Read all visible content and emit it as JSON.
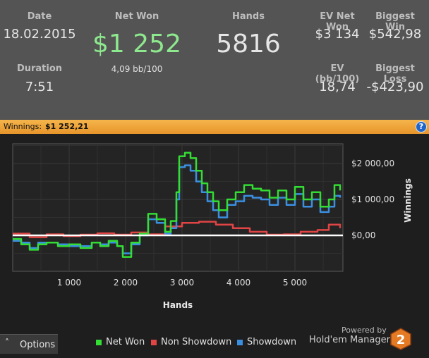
{
  "stats": {
    "date": {
      "label": "Date",
      "value": "18.02.2015"
    },
    "net_won": {
      "label": "Net Won",
      "value": "$1 252",
      "sub": "4,09 bb/100"
    },
    "hands": {
      "label": "Hands",
      "value": "5816"
    },
    "ev_net_won": {
      "label": "EV Net Won",
      "value": "$3 134"
    },
    "biggest_win": {
      "label": "Biggest Win",
      "value": "$542,98"
    },
    "duration": {
      "label": "Duration",
      "value": "7:51"
    },
    "ev_bb100": {
      "label": "EV (bb/100)",
      "value": "18,74"
    },
    "biggest_loss": {
      "label": "Biggest Loss",
      "value": "-$423,90"
    }
  },
  "banner": {
    "label": "Winnings:",
    "value": "$1 252,21",
    "help_icon": "?"
  },
  "colors": {
    "net_won": "#33dd33",
    "non_showdown": "#e04444",
    "showdown": "#3b8fe0",
    "banner": "#eea337"
  },
  "footer": {
    "options_label": "Options",
    "options_caret": "˄",
    "powered_by": "Powered by",
    "brand": "Hold'em Manager",
    "logo_text": "2"
  },
  "legend": [
    {
      "name": "Net Won",
      "color": "#33dd33"
    },
    {
      "name": "Non Showdown",
      "color": "#e04444"
    },
    {
      "name": "Showdown",
      "color": "#3b8fe0"
    }
  ],
  "chart_data": {
    "type": "line",
    "xlabel": "Hands",
    "ylabel": "Winnings",
    "xlim": [
      0,
      5850
    ],
    "ylim": [
      -1000,
      2550
    ],
    "x_ticks": [
      1000,
      2000,
      3000,
      4000,
      5000
    ],
    "x_tick_labels": [
      "1 000",
      "2 000",
      "3 000",
      "4 000",
      "5 000"
    ],
    "y_ticks": [
      0,
      1000,
      2000
    ],
    "y_tick_labels": [
      "$0,00",
      "$1 000,00",
      "$2 000,00"
    ],
    "grid": true,
    "legend_position": "bottom",
    "series": [
      {
        "name": "Net Won",
        "color": "#33dd33",
        "x": [
          0,
          150,
          300,
          450,
          600,
          800,
          1000,
          1200,
          1400,
          1550,
          1700,
          1850,
          1950,
          2100,
          2250,
          2400,
          2550,
          2700,
          2800,
          2900,
          2950,
          3050,
          3150,
          3250,
          3350,
          3450,
          3550,
          3650,
          3800,
          3950,
          4100,
          4250,
          4400,
          4550,
          4700,
          4850,
          5000,
          5150,
          5300,
          5450,
          5600,
          5700,
          5800
        ],
        "y": [
          -100,
          -250,
          -400,
          -250,
          -200,
          -300,
          -250,
          -350,
          -200,
          -300,
          -150,
          -300,
          -600,
          -200,
          50,
          600,
          450,
          100,
          400,
          1200,
          2200,
          2300,
          2150,
          1800,
          1450,
          1200,
          950,
          700,
          1000,
          1200,
          1400,
          1300,
          1250,
          1050,
          1250,
          1000,
          1350,
          1000,
          1200,
          800,
          1000,
          1400,
          1252
        ]
      },
      {
        "name": "Non Showdown",
        "color": "#e04444",
        "x": [
          0,
          300,
          600,
          900,
          1200,
          1500,
          1800,
          2100,
          2400,
          2700,
          3000,
          3300,
          3600,
          3900,
          4200,
          4500,
          4800,
          5100,
          5400,
          5600,
          5800
        ],
        "y": [
          50,
          -50,
          30,
          -20,
          20,
          60,
          20,
          80,
          30,
          250,
          350,
          380,
          300,
          200,
          100,
          20,
          30,
          100,
          150,
          300,
          200
        ]
      },
      {
        "name": "Showdown",
        "color": "#3b8fe0",
        "x": [
          0,
          150,
          300,
          450,
          600,
          800,
          1000,
          1200,
          1400,
          1550,
          1700,
          1850,
          1950,
          2100,
          2250,
          2400,
          2550,
          2700,
          2800,
          2900,
          2950,
          3050,
          3150,
          3250,
          3350,
          3450,
          3550,
          3650,
          3800,
          3950,
          4100,
          4250,
          4400,
          4550,
          4700,
          4850,
          5000,
          5150,
          5300,
          5450,
          5600,
          5700,
          5800
        ],
        "y": [
          -150,
          -200,
          -350,
          -200,
          -200,
          -250,
          -300,
          -300,
          -200,
          -250,
          -200,
          -300,
          -500,
          -250,
          0,
          450,
          350,
          50,
          200,
          1000,
          1900,
          1950,
          1800,
          1500,
          1200,
          950,
          700,
          500,
          850,
          950,
          1100,
          1050,
          1000,
          850,
          1050,
          850,
          1150,
          800,
          1000,
          650,
          800,
          1100,
          1050
        ]
      }
    ]
  }
}
